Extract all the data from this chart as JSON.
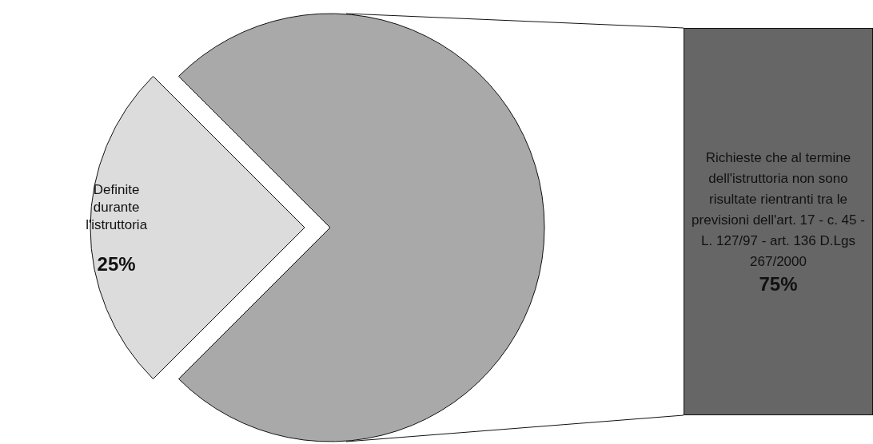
{
  "chart_data": {
    "type": "pie",
    "categories": [
      "Definite durante l'istruttoria",
      "Richieste che al termine dell'istruttoria non sono risultate rientranti tra le previsioni dell'art. 17 - c. 45 - L. 127/97 - art. 136 D.Lgs 267/2000"
    ],
    "values": [
      25,
      75
    ],
    "colors": [
      "#dcdcdc",
      "#a9a9a9"
    ],
    "value_labels": [
      "25%",
      "75%"
    ]
  }
}
